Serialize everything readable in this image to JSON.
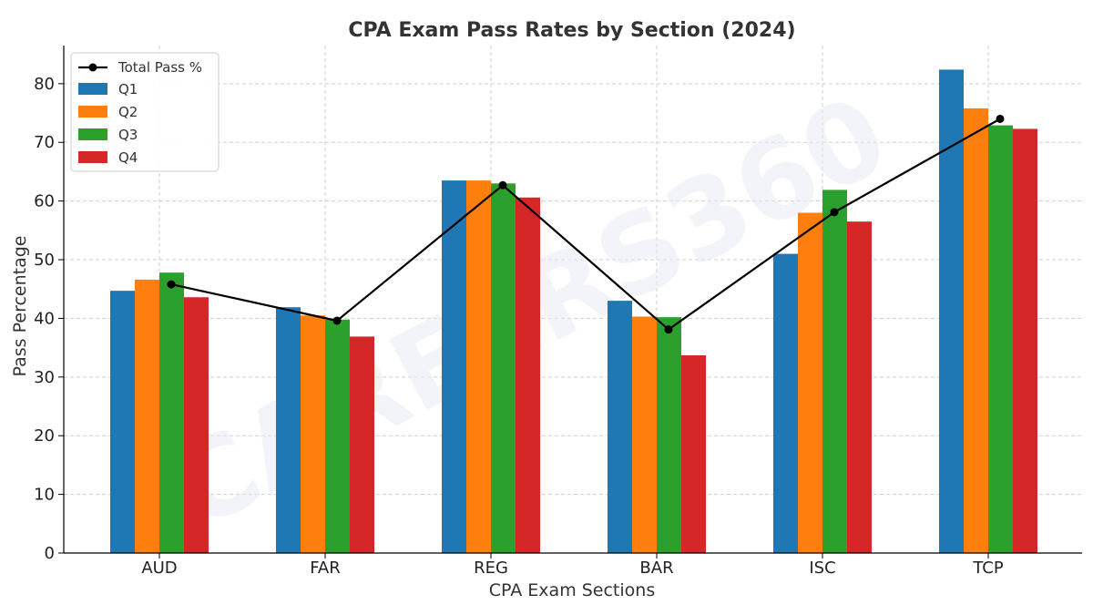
{
  "chart_data": {
    "type": "bar",
    "title": "CPA Exam Pass Rates by Section (2024)",
    "xlabel": "CPA Exam Sections",
    "ylabel": "Pass Percentage",
    "categories": [
      "AUD",
      "FAR",
      "REG",
      "BAR",
      "ISC",
      "TCP"
    ],
    "ylim": [
      0,
      86.5
    ],
    "yticks": [
      0,
      10,
      20,
      30,
      40,
      50,
      60,
      70,
      80
    ],
    "grid": true,
    "legend_position": "top-left",
    "series": [
      {
        "name": "Q1",
        "color": "#1f77b4",
        "values": [
          44.7,
          41.9,
          63.5,
          43.0,
          51.0,
          82.4
        ]
      },
      {
        "name": "Q2",
        "color": "#ff7f0e",
        "values": [
          46.6,
          40.5,
          63.5,
          40.3,
          58.0,
          75.8
        ]
      },
      {
        "name": "Q3",
        "color": "#2ca02c",
        "values": [
          47.8,
          39.8,
          63.0,
          40.2,
          61.9,
          72.9
        ]
      },
      {
        "name": "Q4",
        "color": "#d62728",
        "values": [
          43.6,
          36.9,
          60.6,
          33.7,
          56.5,
          72.3
        ]
      }
    ],
    "line_series": {
      "name": "Total Pass %",
      "color": "#000000",
      "values": [
        45.8,
        39.6,
        62.7,
        38.1,
        58.1,
        74.0
      ]
    }
  },
  "watermark": "CAREERS360"
}
